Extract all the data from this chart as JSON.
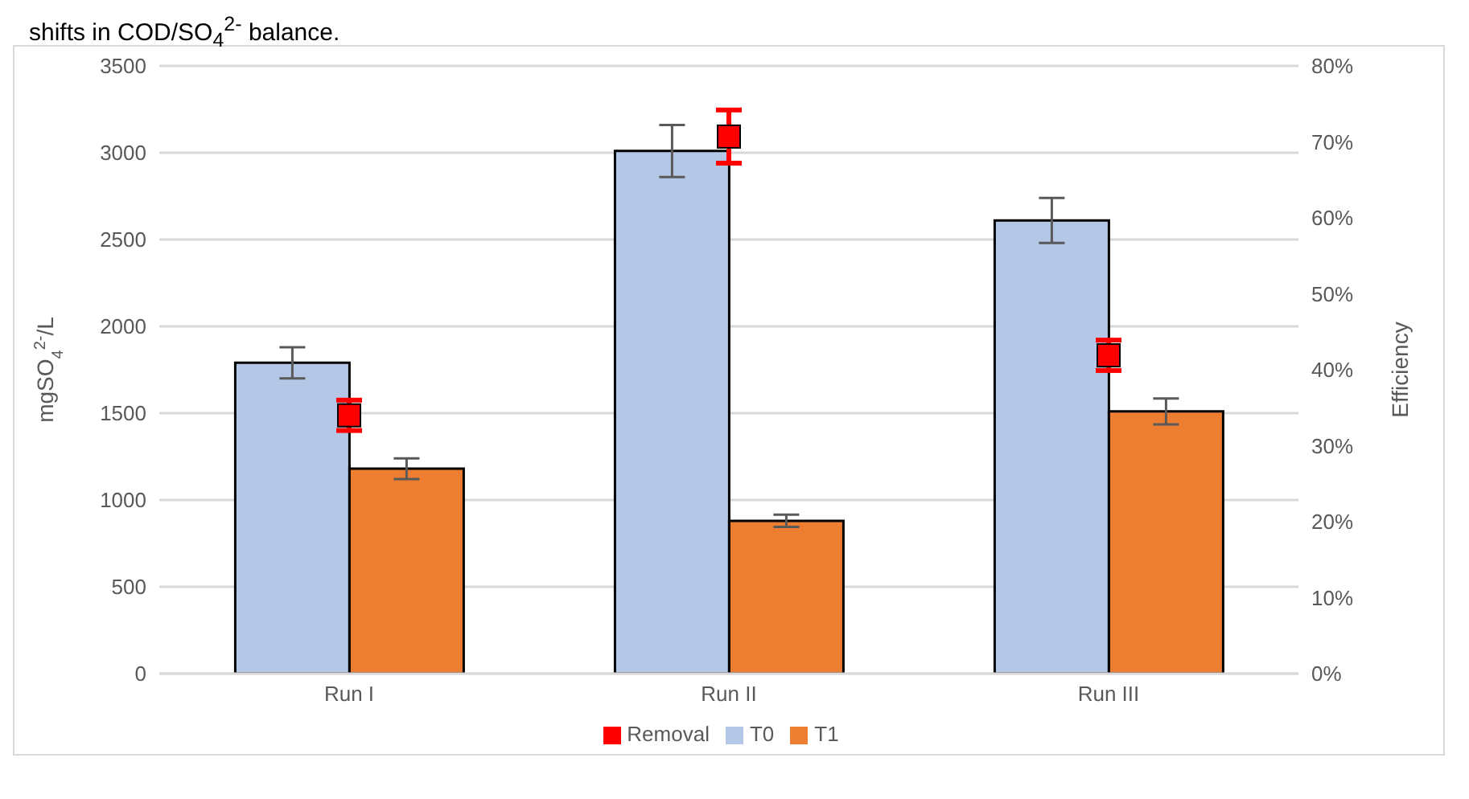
{
  "chart_data": {
    "type": "bar",
    "annotations": [
      "shifts in COD/SO$_{4}$$^{2-}$ balance."
    ],
    "ylabel": "mgSO$_{4}$$^{2-}$/L",
    "y2label": "Efficiency",
    "categories": [
      "Run I",
      "Run II",
      "Run III"
    ],
    "series": [
      {
        "name": "T0",
        "color": "#b4c7e7",
        "values": [
          1790,
          3010,
          2610
        ],
        "errors": [
          90,
          150,
          130
        ]
      },
      {
        "name": "T1",
        "color": "#ed7d31",
        "values": [
          1180,
          880,
          1510
        ],
        "errors": [
          60,
          35,
          75
        ]
      },
      {
        "name": "Removal",
        "type": "scatter",
        "axis": "y2",
        "marker": "square",
        "color": "#ff0000",
        "values": [
          34,
          70.7,
          41.9
        ],
        "errors": [
          2,
          3.5,
          2
        ]
      }
    ],
    "ylim": [
      0,
      3500
    ],
    "yticks": [
      0,
      500,
      1000,
      1500,
      2000,
      2500,
      3000,
      3500
    ],
    "y2lim": [
      0,
      80
    ],
    "y2ticks": [
      {
        "value": 0,
        "label": "0%"
      },
      {
        "value": 10,
        "label": "10%"
      },
      {
        "value": 20,
        "label": "20%"
      },
      {
        "value": 30,
        "label": "30%"
      },
      {
        "value": 40,
        "label": "40%"
      },
      {
        "value": 50,
        "label": "50%"
      },
      {
        "value": 60,
        "label": "60%"
      },
      {
        "value": 70,
        "label": "70%"
      },
      {
        "value": 80,
        "label": "80%"
      }
    ],
    "grid": "y",
    "legend": "bottom"
  }
}
